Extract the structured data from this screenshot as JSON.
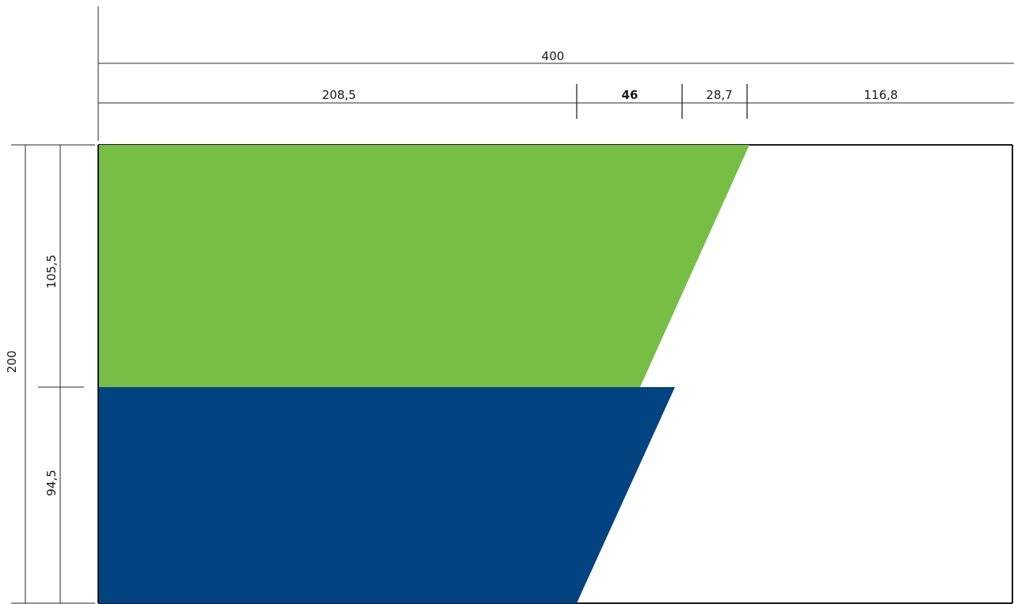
{
  "drawing": {
    "colors": {
      "green": "#76bf44",
      "blue": "#024382",
      "line": "#2a2a2a",
      "background": "#ffffff"
    },
    "top_dimensions": {
      "total": "400",
      "segments": [
        "208,5",
        "46",
        "28,7",
        "116,8"
      ]
    },
    "side_dimensions": {
      "total": "200",
      "upper": "105,5",
      "lower": "94,5"
    },
    "shapes": [
      {
        "name": "green-band",
        "color_key": "green"
      },
      {
        "name": "blue-band",
        "color_key": "blue"
      }
    ]
  }
}
